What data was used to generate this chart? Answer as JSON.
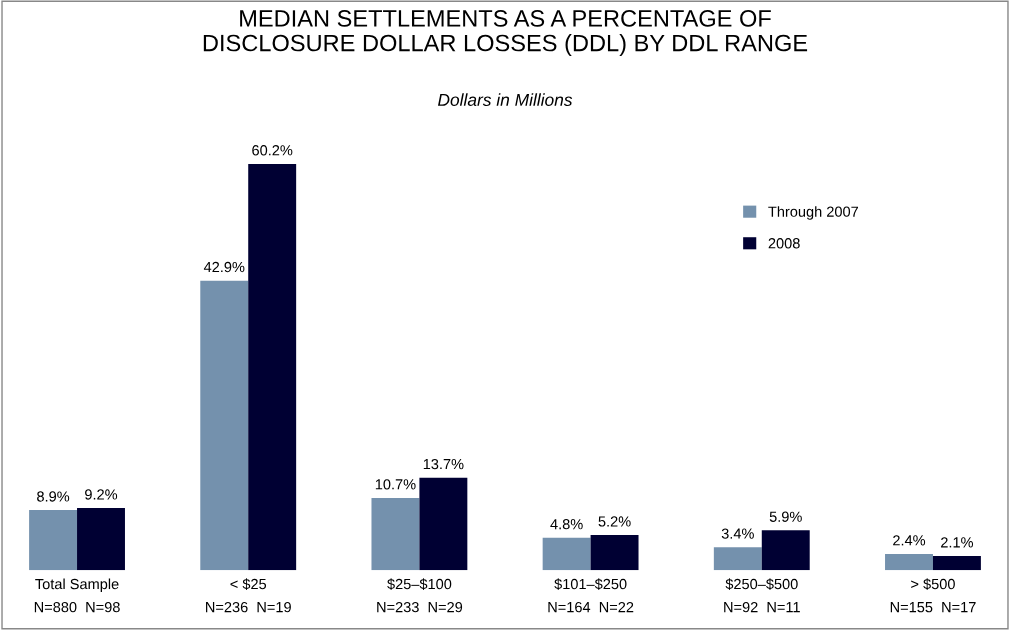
{
  "chart_data": {
    "type": "bar",
    "title": "MEDIAN SETTLEMENTS AS A PERCENTAGE OF\nDISCLOSURE DOLLAR LOSSES (DDL) BY DDL RANGE",
    "subtitle": "Dollars in Millions",
    "categories": [
      "Total Sample\nN=880  N=98",
      "< $25\nN=236  N=19",
      "$25–$100\nN=233  N=29",
      "$101–$250\nN=164  N=22",
      "$250–$500\nN=92  N=11",
      "> $500\nN=155  N=17"
    ],
    "series": [
      {
        "name": "Through 2007",
        "color": "#7491ad",
        "values": [
          8.9,
          42.9,
          10.7,
          4.8,
          3.4,
          2.4
        ],
        "value_labels": [
          "8.9%",
          "42.9%",
          "10.7%",
          "4.8%",
          "3.4%",
          "2.4%"
        ]
      },
      {
        "name": "2008",
        "color": "#000033",
        "values": [
          9.2,
          60.2,
          13.7,
          5.2,
          5.9,
          2.1
        ],
        "value_labels": [
          "9.2%",
          "60.2%",
          "13.7%",
          "5.2%",
          "5.9%",
          "2.1%"
        ]
      }
    ],
    "legend": "top right",
    "grid": false,
    "tick_labels": "x"
  }
}
